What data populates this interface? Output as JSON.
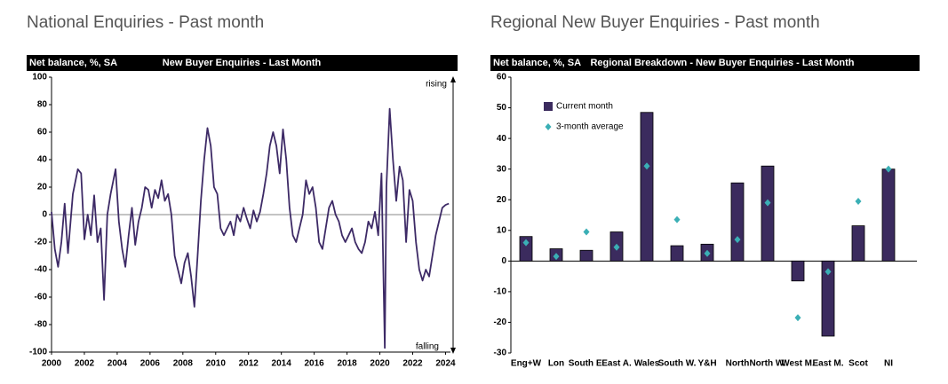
{
  "chart_data": [
    {
      "type": "line",
      "title": "National Enquiries - Past month",
      "panel_label": "Net balance, %, SA",
      "subtitle": "New Buyer Enquiries - Last Month",
      "annotations": [
        "rising",
        "falling"
      ],
      "color": "#3d2a66",
      "x": [
        2000.0,
        2000.2,
        2000.4,
        2000.6,
        2000.8,
        2001.0,
        2001.3,
        2001.6,
        2001.8,
        2002.0,
        2002.2,
        2002.4,
        2002.6,
        2002.8,
        2003.0,
        2003.2,
        2003.4,
        2003.6,
        2003.9,
        2004.1,
        2004.3,
        2004.5,
        2004.7,
        2004.9,
        2005.1,
        2005.3,
        2005.5,
        2005.7,
        2005.9,
        2006.1,
        2006.3,
        2006.5,
        2006.7,
        2006.9,
        2007.1,
        2007.3,
        2007.5,
        2007.7,
        2007.9,
        2008.1,
        2008.3,
        2008.5,
        2008.7,
        2008.9,
        2009.1,
        2009.3,
        2009.5,
        2009.7,
        2009.9,
        2010.1,
        2010.3,
        2010.5,
        2010.7,
        2010.9,
        2011.1,
        2011.3,
        2011.5,
        2011.7,
        2011.9,
        2012.1,
        2012.3,
        2012.5,
        2012.7,
        2012.9,
        2013.1,
        2013.3,
        2013.5,
        2013.7,
        2013.9,
        2014.1,
        2014.3,
        2014.5,
        2014.7,
        2014.9,
        2015.1,
        2015.3,
        2015.5,
        2015.7,
        2015.9,
        2016.1,
        2016.3,
        2016.5,
        2016.7,
        2016.9,
        2017.1,
        2017.3,
        2017.5,
        2017.7,
        2017.9,
        2018.1,
        2018.3,
        2018.5,
        2018.7,
        2018.9,
        2019.1,
        2019.3,
        2019.5,
        2019.7,
        2019.9,
        2020.1,
        2020.3,
        2020.4,
        2020.6,
        2020.8,
        2021.0,
        2021.2,
        2021.4,
        2021.6,
        2021.8,
        2022.0,
        2022.2,
        2022.4,
        2022.6,
        2022.8,
        2023.0,
        2023.2,
        2023.4,
        2023.6,
        2023.8,
        2024.0,
        2024.2
      ],
      "values": [
        2,
        -25,
        -38,
        -20,
        8,
        -28,
        15,
        33,
        30,
        -18,
        0,
        -15,
        14,
        -20,
        -10,
        -62,
        0,
        15,
        33,
        -5,
        -25,
        -38,
        -15,
        5,
        -22,
        -5,
        5,
        20,
        18,
        5,
        18,
        12,
        25,
        10,
        15,
        0,
        -30,
        -40,
        -50,
        -35,
        -28,
        -45,
        -67,
        -30,
        10,
        40,
        63,
        50,
        20,
        15,
        -10,
        -15,
        -10,
        -5,
        -15,
        0,
        -5,
        5,
        -3,
        -10,
        3,
        -5,
        2,
        15,
        30,
        50,
        60,
        50,
        30,
        62,
        40,
        5,
        -15,
        -20,
        -10,
        0,
        25,
        15,
        20,
        5,
        -20,
        -25,
        -10,
        5,
        10,
        0,
        -5,
        -15,
        -20,
        -15,
        -10,
        -20,
        -25,
        -28,
        -20,
        -5,
        -10,
        2,
        -15,
        30,
        -97,
        20,
        77,
        40,
        10,
        35,
        25,
        -20,
        18,
        10,
        -20,
        -40,
        -48,
        -40,
        -45,
        -30,
        -15,
        -5,
        5,
        7,
        8
      ],
      "xlim": [
        2000,
        2024.3
      ],
      "xticks": [
        2000,
        2002,
        2004,
        2006,
        2008,
        2010,
        2012,
        2014,
        2016,
        2018,
        2020,
        2022,
        2024
      ],
      "ylim": [
        -100,
        100
      ],
      "yticks": [
        -100,
        -80,
        -60,
        -40,
        -20,
        0,
        20,
        40,
        60,
        80,
        100
      ]
    },
    {
      "type": "bar",
      "title": "Regional New Buyer Enquiries - Past month",
      "panel_label": "Net balance, %, SA",
      "subtitle": "Regional Breakdown - New Buyer Enquiries - Last Month",
      "categories": [
        "Eng+W",
        "Lon",
        "South E.",
        "East A.",
        "Wales",
        "South W.",
        "Y&H",
        "North",
        "North W.",
        "West M.",
        "East M.",
        "Scot",
        "NI"
      ],
      "series": [
        {
          "name": "Current month",
          "type": "bar",
          "color": "#3b2b5e",
          "values": [
            8,
            4,
            3.5,
            9.5,
            48.5,
            5,
            5.5,
            25.5,
            31,
            -6.5,
            -24.5,
            11.5,
            30
          ]
        },
        {
          "name": "3-month average",
          "type": "scatter",
          "color": "#3aafb5",
          "values": [
            6,
            1.5,
            9.5,
            4.5,
            31,
            13.5,
            2.5,
            7,
            19,
            -18.5,
            -3.5,
            19.5,
            30
          ]
        }
      ],
      "ylim": [
        -30,
        60
      ],
      "yticks": [
        -30,
        -20,
        -10,
        0,
        10,
        20,
        30,
        40,
        50,
        60
      ]
    }
  ]
}
